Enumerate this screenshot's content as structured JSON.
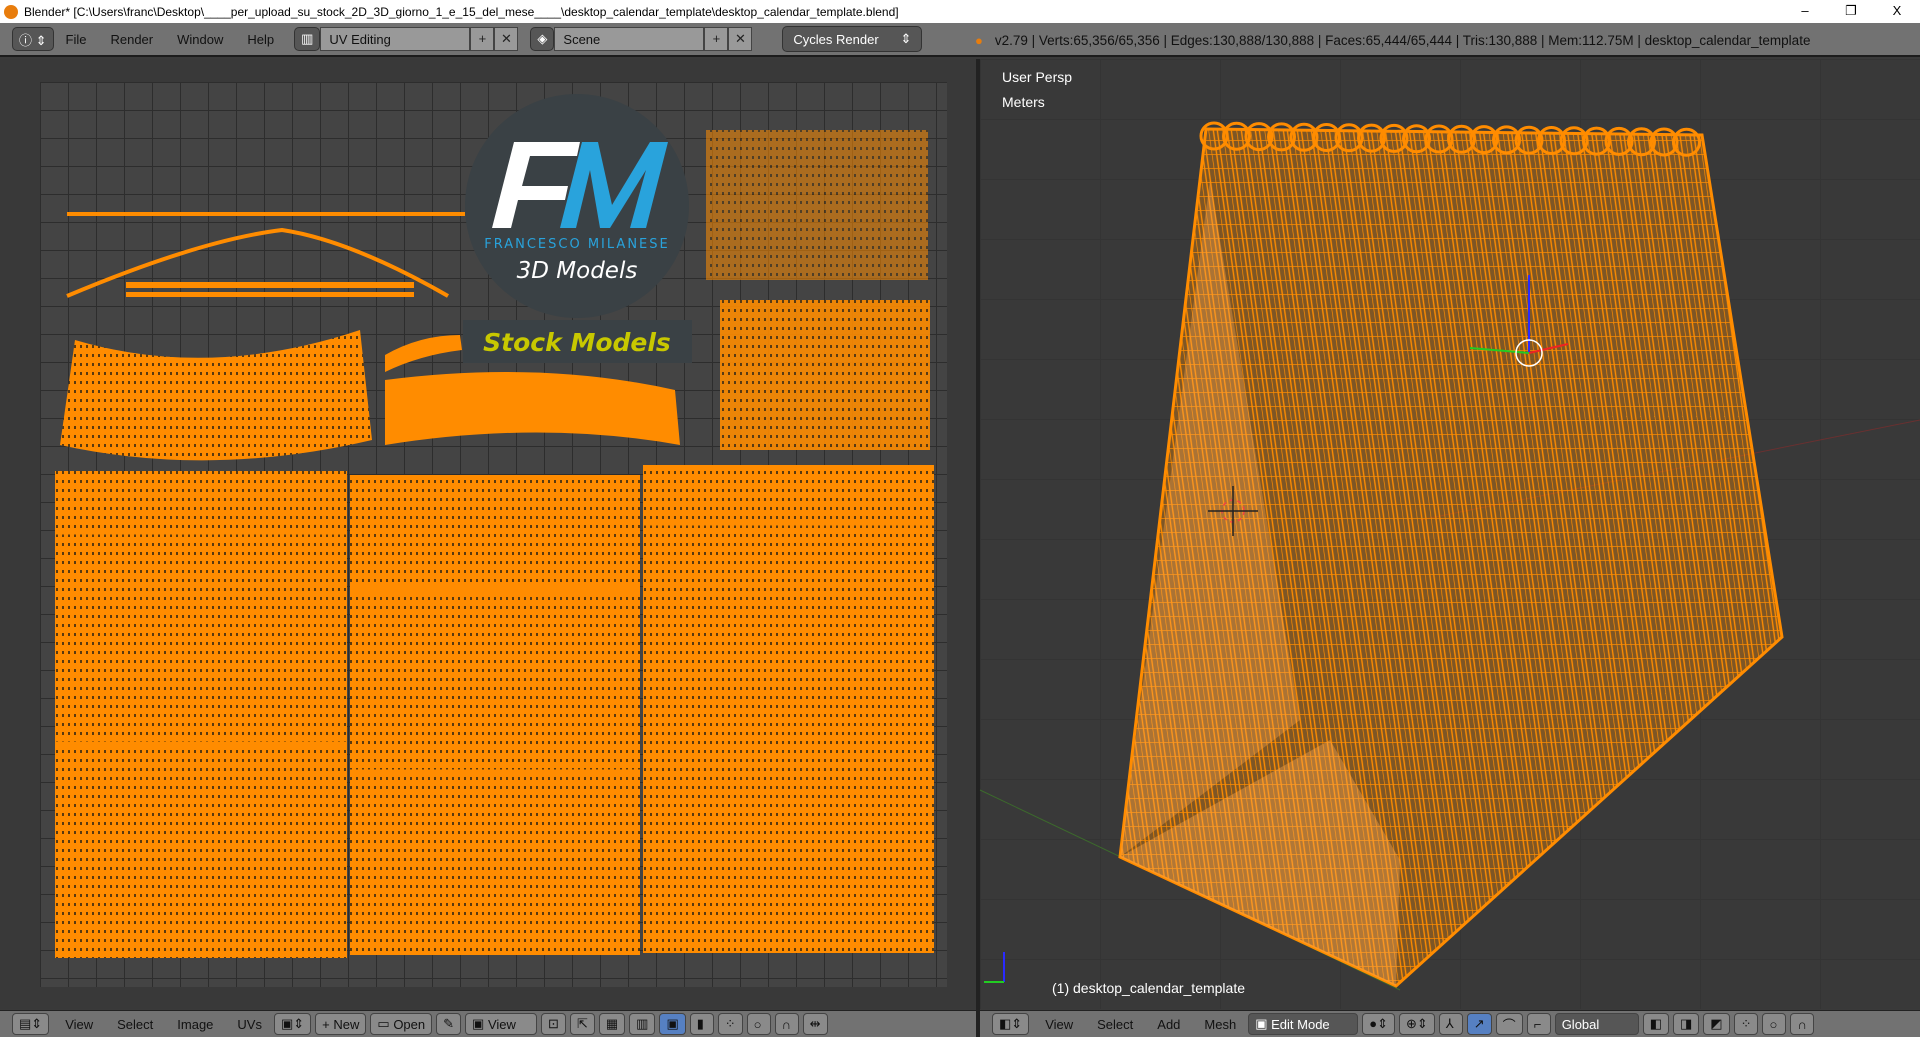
{
  "window": {
    "title": "Blender* [C:\\Users\\franc\\Desktop\\____per_upload_su_stock_2D_3D_giorno_1_e_15_del_mese____\\desktop_calendar_template\\desktop_calendar_template.blend]",
    "minimize": "–",
    "restore": "❐",
    "close": "X"
  },
  "topbar": {
    "menu": [
      "File",
      "Render",
      "Window",
      "Help"
    ],
    "layout": "UV Editing",
    "scene": "Scene",
    "engine": "Cycles Render",
    "stats": "v2.79 | Verts:65,356/65,356 | Edges:130,888/130,888 | Faces:65,444/65,444 | Tris:130,888 | Mem:112.75M | desktop_calendar_template"
  },
  "uv_editor": {
    "logo": {
      "letters_f": "F",
      "letters_m": "M",
      "brand": "FRANCESCO MILANESE",
      "sub": "3D Models",
      "banner": "Stock Models"
    },
    "menu": [
      "View",
      "Select",
      "Image",
      "UVs"
    ],
    "new": "New",
    "open": "Open",
    "view": "View"
  },
  "viewport": {
    "persp": "User Persp",
    "units": "Meters",
    "object": "(1) desktop_calendar_template",
    "menu": [
      "View",
      "Select",
      "Add",
      "Mesh"
    ],
    "mode": "Edit Mode",
    "orientation": "Global"
  },
  "colors": {
    "mesh": "#ff8c00",
    "header": "#727272",
    "logo_blue": "#29a3dc",
    "banner_text": "#c8c800"
  }
}
